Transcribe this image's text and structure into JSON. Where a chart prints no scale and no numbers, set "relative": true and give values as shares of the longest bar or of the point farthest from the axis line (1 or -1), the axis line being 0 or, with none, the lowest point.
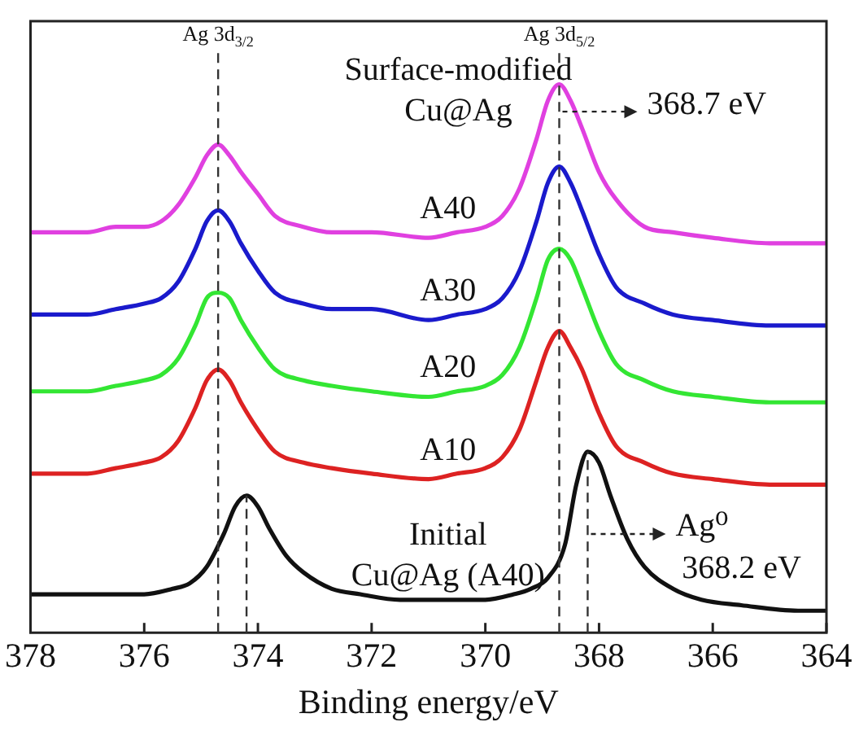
{
  "chart_data": {
    "type": "line",
    "relative": true,
    "xlabel": "Binding energy/eV",
    "xlim": [
      378,
      364
    ],
    "xticks": [
      378,
      376,
      374,
      372,
      370,
      368,
      366,
      364
    ],
    "grid": false,
    "legend": false,
    "marker": "none",
    "line_style": "solid",
    "series": [
      {
        "name": "A40",
        "color": "#e040e0",
        "x": [
          378,
          377,
          376.5,
          376,
          375.7,
          375.4,
          375.1,
          374.9,
          374.7,
          374.5,
          374.3,
          374.0,
          373.7,
          373.2,
          372.7,
          372,
          371,
          370.5,
          370,
          369.7,
          369.4,
          369.1,
          368.9,
          368.7,
          368.5,
          368.3,
          368.0,
          367.7,
          367.2,
          366.7,
          366,
          365,
          364
        ],
        "values": [
          0.73,
          0.73,
          0.74,
          0.74,
          0.75,
          0.78,
          0.83,
          0.87,
          0.89,
          0.87,
          0.84,
          0.8,
          0.76,
          0.74,
          0.73,
          0.73,
          0.72,
          0.73,
          0.74,
          0.76,
          0.81,
          0.9,
          0.97,
          1.0,
          0.97,
          0.92,
          0.84,
          0.79,
          0.74,
          0.73,
          0.72,
          0.71,
          0.71
        ]
      },
      {
        "name": "A30",
        "color": "#1a1acc",
        "x": [
          378,
          377,
          376.5,
          376,
          375.7,
          375.4,
          375.1,
          374.9,
          374.7,
          374.5,
          374.3,
          374.0,
          373.7,
          373.2,
          372.7,
          372,
          371,
          370.5,
          370,
          369.7,
          369.4,
          369.1,
          368.9,
          368.7,
          368.5,
          368.3,
          368.0,
          367.7,
          367.2,
          366.7,
          366,
          365,
          364
        ],
        "values": [
          0.58,
          0.58,
          0.59,
          0.6,
          0.61,
          0.64,
          0.7,
          0.75,
          0.77,
          0.75,
          0.71,
          0.66,
          0.62,
          0.6,
          0.59,
          0.59,
          0.57,
          0.58,
          0.59,
          0.61,
          0.66,
          0.75,
          0.82,
          0.85,
          0.82,
          0.77,
          0.69,
          0.63,
          0.6,
          0.58,
          0.57,
          0.56,
          0.56
        ]
      },
      {
        "name": "A20",
        "color": "#33e633",
        "x": [
          378,
          377,
          376.5,
          376,
          375.7,
          375.4,
          375.1,
          374.9,
          374.7,
          374.5,
          374.3,
          374.0,
          373.7,
          373.2,
          372.7,
          372,
          371,
          370.5,
          370,
          369.7,
          369.4,
          369.1,
          368.9,
          368.7,
          368.5,
          368.3,
          368.0,
          367.7,
          367.2,
          366.7,
          366,
          365,
          364
        ],
        "values": [
          0.44,
          0.44,
          0.45,
          0.46,
          0.47,
          0.5,
          0.56,
          0.61,
          0.62,
          0.61,
          0.57,
          0.52,
          0.48,
          0.46,
          0.45,
          0.44,
          0.43,
          0.44,
          0.45,
          0.47,
          0.52,
          0.61,
          0.68,
          0.7,
          0.68,
          0.63,
          0.55,
          0.49,
          0.46,
          0.44,
          0.43,
          0.42,
          0.42
        ]
      },
      {
        "name": "A10",
        "color": "#dd2222",
        "x": [
          378,
          377,
          376.5,
          376,
          375.7,
          375.4,
          375.1,
          374.9,
          374.7,
          374.5,
          374.3,
          374.0,
          373.7,
          373.2,
          372.7,
          372,
          371,
          370.5,
          370,
          369.7,
          369.4,
          369.1,
          368.9,
          368.7,
          368.5,
          368.3,
          368.0,
          367.7,
          367.2,
          366.7,
          366,
          365,
          364
        ],
        "values": [
          0.29,
          0.29,
          0.3,
          0.31,
          0.32,
          0.35,
          0.41,
          0.46,
          0.48,
          0.46,
          0.42,
          0.37,
          0.33,
          0.31,
          0.3,
          0.29,
          0.28,
          0.29,
          0.3,
          0.32,
          0.37,
          0.46,
          0.52,
          0.55,
          0.52,
          0.48,
          0.4,
          0.34,
          0.31,
          0.29,
          0.28,
          0.27,
          0.27
        ]
      },
      {
        "name": "Initial Cu@Ag (A40)",
        "color": "#111111",
        "x": [
          378,
          376.5,
          376,
          375.5,
          375.2,
          374.9,
          374.6,
          374.4,
          374.2,
          374.0,
          373.8,
          373.5,
          373.2,
          372.7,
          372.2,
          371.5,
          370.5,
          370,
          369.5,
          369.2,
          368.9,
          368.6,
          368.4,
          368.2,
          368.0,
          367.8,
          367.5,
          367.2,
          366.7,
          366.2,
          365.5,
          364.5,
          364
        ],
        "values": [
          0.07,
          0.07,
          0.07,
          0.08,
          0.09,
          0.12,
          0.18,
          0.23,
          0.25,
          0.23,
          0.19,
          0.14,
          0.11,
          0.08,
          0.07,
          0.06,
          0.06,
          0.06,
          0.07,
          0.08,
          0.1,
          0.16,
          0.27,
          0.33,
          0.31,
          0.25,
          0.17,
          0.12,
          0.08,
          0.06,
          0.05,
          0.04,
          0.04
        ]
      }
    ],
    "ref_lines": [
      {
        "axis": "x",
        "value": 374.7,
        "label": "Ag 3d$_{3/2}$",
        "color": "#333333",
        "line_style": "dashed"
      },
      {
        "axis": "x",
        "value": 368.7,
        "label": "Ag 3d$_{5/2}$",
        "color": "#333333",
        "line_style": "dashed"
      },
      {
        "axis": "x",
        "value": 374.2,
        "color": "#333333",
        "line_style": "dashed"
      },
      {
        "axis": "x",
        "value": 368.2,
        "color": "#333333",
        "line_style": "dashed"
      }
    ],
    "annotations": [
      "Surface-modified Cu@Ag",
      {
        "text": "368.7 eV",
        "x": 368.7,
        "y": 0.95
      },
      {
        "text": "Ag⁰",
        "x": 368.2,
        "y": 0.18
      },
      "368.2 eV"
    ]
  }
}
